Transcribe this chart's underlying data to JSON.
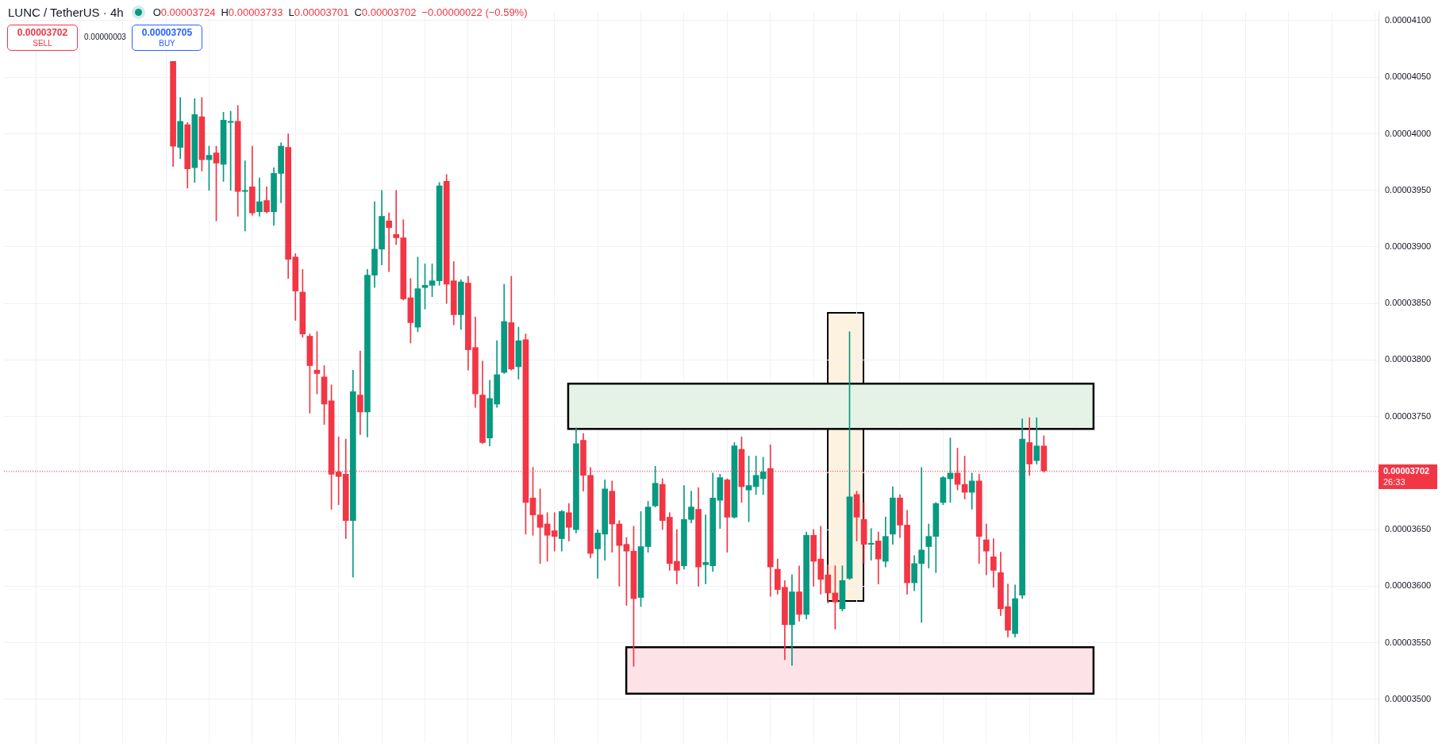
{
  "chart_data": {
    "type": "candlestick",
    "title": "LUNC / TetherUS · 4h",
    "categories": [
      null,
      null,
      null,
      null,
      null,
      null,
      null,
      null,
      null,
      null,
      null,
      null,
      null,
      null,
      null,
      null,
      null,
      null,
      null,
      null,
      null,
      null,
      null,
      null,
      null,
      null,
      null,
      null,
      null,
      null,
      null,
      null,
      null,
      null,
      null,
      null,
      null,
      null,
      null,
      null,
      null,
      null,
      null,
      null,
      null,
      null,
      null,
      null,
      null,
      null,
      null,
      null,
      null,
      null,
      null,
      null,
      null,
      null,
      null,
      null,
      null,
      null,
      null,
      null,
      null,
      null,
      null,
      null,
      null,
      null,
      null,
      null,
      null,
      null,
      null,
      null,
      null,
      null,
      null,
      null,
      null,
      null,
      null,
      null,
      null,
      null,
      null,
      null,
      null,
      null,
      null,
      null,
      null,
      null,
      null,
      null,
      null,
      null,
      null,
      null,
      null,
      null,
      null,
      null,
      null,
      null,
      null,
      null,
      null,
      null,
      null,
      null,
      null,
      null,
      null,
      null,
      null,
      null,
      null,
      null,
      null,
      null,
      null,
      null,
      null,
      null,
      null,
      null,
      null,
      null,
      null,
      null,
      null,
      null,
      null,
      null,
      null,
      null,
      null,
      null,
      null,
      null,
      null,
      null,
      null,
      null,
      null,
      null,
      null,
      null,
      null,
      null,
      null,
      null,
      null,
      null,
      null,
      null,
      null,
      null,
      null,
      null,
      null,
      null,
      null,
      null,
      null,
      null,
      null,
      null,
      null,
      null,
      null,
      null,
      null,
      null,
      null,
      null,
      null,
      null,
      null,
      null,
      null,
      null,
      null,
      null,
      null,
      null,
      null,
      null,
      null
    ],
    "ohlc": [
      null,
      null,
      null,
      null,
      null,
      null,
      null,
      null,
      null,
      null,
      null,
      null,
      null,
      null,
      null,
      null,
      null,
      null,
      null,
      null,
      null,
      null,
      null,
      [
        4.064e-05,
        4.064e-05,
        3.971e-05,
        3.989e-05
      ],
      [
        3.988e-05,
        4.032e-05,
        3.978e-05,
        4.011e-05
      ],
      [
        4.008e-05,
        4.01e-05,
        3.952e-05,
        3.969e-05
      ],
      [
        3.97e-05,
        4.031e-05,
        3.957e-05,
        4.017e-05
      ],
      [
        4.015e-05,
        4.032e-05,
        3.967e-05,
        3.977e-05
      ],
      [
        3.977e-05,
        3.989e-05,
        3.95e-05,
        3.981e-05
      ],
      [
        3.983e-05,
        3.989e-05,
        3.923e-05,
        3.974e-05
      ],
      [
        3.973e-05,
        4.019e-05,
        3.958e-05,
        4.012e-05
      ],
      [
        4.01e-05,
        4.02e-05,
        3.95e-05,
        4.011e-05
      ],
      [
        4.011e-05,
        4.025e-05,
        3.927e-05,
        3.949e-05
      ],
      [
        3.949e-05,
        3.976e-05,
        3.914e-05,
        3.95e-05
      ],
      [
        3.953e-05,
        3.989e-05,
        3.928e-05,
        3.93e-05
      ],
      [
        3.931e-05,
        3.961e-05,
        3.927e-05,
        3.94e-05
      ],
      [
        3.941e-05,
        3.953e-05,
        3.93e-05,
        3.931e-05
      ],
      [
        3.931e-05,
        3.97e-05,
        3.919e-05,
        3.965e-05
      ],
      [
        3.965e-05,
        3.992e-05,
        3.939e-05,
        3.989e-05
      ],
      [
        3.988e-05,
        4e-05,
        3.872e-05,
        3.889e-05
      ],
      [
        3.891e-05,
        3.894e-05,
        3.835e-05,
        3.861e-05
      ],
      [
        3.86e-05,
        3.88e-05,
        3.82e-05,
        3.823e-05
      ],
      [
        3.821e-05,
        3.823e-05,
        3.753e-05,
        3.795e-05
      ],
      [
        3.791e-05,
        3.825e-05,
        3.77e-05,
        3.788e-05
      ],
      [
        3.785e-05,
        3.795e-05,
        3.743e-05,
        3.761e-05
      ],
      [
        3.764e-05,
        3.778e-05,
        3.668e-05,
        3.699e-05
      ],
      [
        3.701e-05,
        3.732e-05,
        3.672e-05,
        3.697e-05
      ],
      [
        3.699e-05,
        3.73e-05,
        3.642e-05,
        3.658e-05
      ],
      [
        3.658e-05,
        3.791e-05,
        3.608e-05,
        3.772e-05
      ],
      [
        3.769e-05,
        3.808e-05,
        3.734e-05,
        3.754e-05
      ],
      [
        3.754e-05,
        3.88e-05,
        3.732e-05,
        3.875e-05
      ],
      [
        3.875e-05,
        3.94e-05,
        3.864e-05,
        3.898e-05
      ],
      [
        3.898e-05,
        3.95e-05,
        3.884e-05,
        3.927e-05
      ],
      [
        3.923e-05,
        3.93e-05,
        3.878e-05,
        3.917e-05
      ],
      [
        3.911e-05,
        3.95e-05,
        3.902e-05,
        3.908e-05
      ],
      [
        3.908e-05,
        3.924e-05,
        3.853e-05,
        3.854e-05
      ],
      [
        3.855e-05,
        3.872e-05,
        3.815e-05,
        3.833e-05
      ],
      [
        3.829e-05,
        3.891e-05,
        3.825e-05,
        3.863e-05
      ],
      [
        3.864e-05,
        3.885e-05,
        3.845e-05,
        3.866e-05
      ],
      [
        3.866e-05,
        3.885e-05,
        3.856e-05,
        3.87e-05
      ],
      [
        3.87e-05,
        3.957e-05,
        3.866e-05,
        3.954e-05
      ],
      [
        3.958e-05,
        3.964e-05,
        3.85e-05,
        3.867e-05
      ],
      [
        3.87e-05,
        3.887e-05,
        3.831e-05,
        3.84e-05
      ],
      [
        3.84e-05,
        3.871e-05,
        3.827e-05,
        3.869e-05
      ],
      [
        3.868e-05,
        3.874e-05,
        3.791e-05,
        3.809e-05
      ],
      [
        3.811e-05,
        3.838e-05,
        3.758e-05,
        3.77e-05
      ],
      [
        3.769e-05,
        3.799e-05,
        3.726e-05,
        3.727e-05
      ],
      [
        3.731e-05,
        3.782e-05,
        3.724e-05,
        3.766e-05
      ],
      [
        3.761e-05,
        3.817e-05,
        3.758e-05,
        3.787e-05
      ],
      [
        3.789e-05,
        3.867e-05,
        3.788e-05,
        3.834e-05
      ],
      [
        3.833e-05,
        3.874e-05,
        3.791e-05,
        3.792e-05
      ],
      [
        3.794e-05,
        3.829e-05,
        3.783e-05,
        3.817e-05
      ],
      [
        3.818e-05,
        3.823e-05,
        3.646e-05,
        3.674e-05
      ],
      [
        3.678e-05,
        3.705e-05,
        3.645e-05,
        3.663e-05
      ],
      [
        3.663e-05,
        3.686e-05,
        3.62e-05,
        3.652e-05
      ],
      [
        3.655e-05,
        3.665e-05,
        3.622e-05,
        3.645e-05
      ],
      [
        3.649e-05,
        3.665e-05,
        3.631e-05,
        3.644e-05
      ],
      [
        3.642e-05,
        3.667e-05,
        3.631e-05,
        3.666e-05
      ],
      [
        3.665e-05,
        3.673e-05,
        3.64e-05,
        3.652e-05
      ],
      [
        3.65e-05,
        3.74e-05,
        3.647e-05,
        3.726e-05
      ],
      [
        3.729e-05,
        3.735e-05,
        3.684e-05,
        3.698e-05
      ],
      [
        3.698e-05,
        3.705e-05,
        3.625e-05,
        3.629e-05
      ],
      [
        3.633e-05,
        3.65e-05,
        3.607e-05,
        3.647e-05
      ],
      [
        3.646e-05,
        3.694e-05,
        3.623e-05,
        3.686e-05
      ],
      [
        3.684e-05,
        3.693e-05,
        3.63e-05,
        3.655e-05
      ],
      [
        3.655e-05,
        3.658e-05,
        3.6e-05,
        3.636e-05
      ],
      [
        3.637e-05,
        3.643e-05,
        3.583e-05,
        3.631e-05
      ],
      [
        3.631e-05,
        3.653e-05,
        3.529e-05,
        3.589e-05
      ],
      [
        3.59e-05,
        3.666e-05,
        3.582e-05,
        3.635e-05
      ],
      [
        3.635e-05,
        3.675e-05,
        3.63e-05,
        3.67e-05
      ],
      [
        3.671e-05,
        3.706e-05,
        3.67e-05,
        3.691e-05
      ],
      [
        3.69e-05,
        3.695e-05,
        3.65e-05,
        3.658e-05
      ],
      [
        3.661e-05,
        3.665e-05,
        3.614e-05,
        3.62e-05
      ],
      [
        3.622e-05,
        3.65e-05,
        3.602e-05,
        3.614e-05
      ],
      [
        3.618e-05,
        3.689e-05,
        3.615e-05,
        3.659e-05
      ],
      [
        3.659e-05,
        3.684e-05,
        3.656e-05,
        3.67e-05
      ],
      [
        3.668e-05,
        3.687e-05,
        3.6e-05,
        3.617e-05
      ],
      [
        3.619e-05,
        3.663e-05,
        3.602e-05,
        3.621e-05
      ],
      [
        3.618e-05,
        3.7e-05,
        3.613e-05,
        3.678e-05
      ],
      [
        3.676e-05,
        3.699e-05,
        3.651e-05,
        3.696e-05
      ],
      [
        3.694e-05,
        3.695e-05,
        3.63e-05,
        3.661e-05
      ],
      [
        3.661e-05,
        3.727e-05,
        3.66e-05,
        3.724e-05
      ],
      [
        3.721e-05,
        3.732e-05,
        3.674e-05,
        3.688e-05
      ],
      [
        3.685e-05,
        3.715e-05,
        3.657e-05,
        3.689e-05
      ],
      [
        3.688e-05,
        3.715e-05,
        3.681e-05,
        3.698e-05
      ],
      [
        3.695e-05,
        3.714e-05,
        3.681e-05,
        3.701e-05
      ],
      [
        3.704e-05,
        3.725e-05,
        3.591e-05,
        3.617e-05
      ],
      [
        3.615e-05,
        3.624e-05,
        3.593e-05,
        3.597e-05
      ],
      [
        3.599e-05,
        3.605e-05,
        3.535e-05,
        3.566e-05
      ],
      [
        3.566e-05,
        3.61e-05,
        3.53e-05,
        3.595e-05
      ],
      [
        3.595e-05,
        3.618e-05,
        3.569e-05,
        3.575e-05
      ],
      [
        3.575e-05,
        3.648e-05,
        3.571e-05,
        3.645e-05
      ],
      [
        3.645e-05,
        3.65e-05,
        3.6e-05,
        3.622e-05
      ],
      [
        3.624e-05,
        3.653e-05,
        3.593e-05,
        3.606e-05
      ],
      [
        3.61e-05,
        3.619e-05,
        3.585e-05,
        3.594e-05
      ],
      [
        3.594e-05,
        3.618e-05,
        3.562e-05,
        3.586e-05
      ],
      [
        3.58e-05,
        3.618e-05,
        3.578e-05,
        3.605e-05
      ],
      [
        3.607e-05,
        3.825e-05,
        3.606e-05,
        3.679e-05
      ],
      [
        3.681e-05,
        3.684e-05,
        3.64e-05,
        3.661e-05
      ],
      [
        3.659e-05,
        3.674e-05,
        3.62e-05,
        3.637e-05
      ],
      [
        3.637e-05,
        3.651e-05,
        3.623e-05,
        3.638e-05
      ],
      [
        3.64e-05,
        3.648e-05,
        3.602e-05,
        3.624e-05
      ],
      [
        3.622e-05,
        3.661e-05,
        3.617e-05,
        3.644e-05
      ],
      [
        3.646e-05,
        3.688e-05,
        3.637e-05,
        3.678e-05
      ],
      [
        3.678e-05,
        3.681e-05,
        3.643e-05,
        3.654e-05
      ],
      [
        3.654e-05,
        3.667e-05,
        3.593e-05,
        3.603e-05
      ],
      [
        3.603e-05,
        3.627e-05,
        3.596e-05,
        3.62e-05
      ],
      [
        3.62e-05,
        3.705e-05,
        3.568e-05,
        3.632e-05
      ],
      [
        3.635e-05,
        3.655e-05,
        3.616e-05,
        3.644e-05
      ],
      [
        3.644e-05,
        3.674e-05,
        3.612e-05,
        3.673e-05
      ],
      [
        3.674e-05,
        3.697e-05,
        3.672e-05,
        3.696e-05
      ],
      [
        3.695e-05,
        3.731e-05,
        3.674e-05,
        3.7e-05
      ],
      [
        3.7e-05,
        3.722e-05,
        3.685e-05,
        3.69e-05
      ],
      [
        3.69e-05,
        3.715e-05,
        3.677e-05,
        3.683e-05
      ],
      [
        3.683e-05,
        3.7e-05,
        3.668e-05,
        3.693e-05
      ],
      [
        3.693e-05,
        3.699e-05,
        3.62e-05,
        3.644e-05
      ],
      [
        3.641e-05,
        3.655e-05,
        3.61e-05,
        3.631e-05
      ],
      [
        3.626e-05,
        3.642e-05,
        3.599e-05,
        3.614e-05
      ],
      [
        3.612e-05,
        3.63e-05,
        3.574e-05,
        3.58e-05
      ],
      [
        3.582e-05,
        3.602e-05,
        3.555e-05,
        3.561e-05
      ],
      [
        3.558e-05,
        3.601e-05,
        3.555e-05,
        3.589e-05
      ],
      [
        3.592e-05,
        3.748e-05,
        3.589e-05,
        3.73e-05
      ],
      [
        3.727e-05,
        3.749e-05,
        3.698e-05,
        3.708e-05
      ],
      [
        3.711e-05,
        3.749e-05,
        3.708e-05,
        3.724e-05
      ],
      [
        3.724e-05,
        3.733e-05,
        3.701e-05,
        3.702e-05
      ],
      null,
      null,
      null,
      null,
      null,
      null,
      null,
      null,
      null,
      null,
      null,
      null,
      null,
      null,
      null,
      null,
      null,
      null,
      null,
      null,
      null,
      null,
      null,
      null,
      null,
      null,
      null,
      null,
      null,
      null,
      null,
      null,
      null,
      null,
      null,
      null,
      null,
      null,
      null,
      null,
      null,
      null,
      null,
      null,
      null,
      null
    ],
    "colors": [
      null,
      null,
      null,
      null,
      null,
      null,
      null,
      null,
      null,
      null,
      null,
      null,
      null,
      null,
      null,
      null,
      null,
      null,
      null,
      null,
      null,
      null,
      null,
      "#f23645",
      "#089981",
      "#f23645",
      "#089981",
      "#f23645",
      "#089981",
      "#f23645",
      "#089981",
      "#089981",
      "#f23645",
      "#089981",
      "#f23645",
      "#089981",
      "#f23645",
      "#089981",
      "#089981",
      "#f23645",
      "#f23645",
      "#f23645",
      "#f23645",
      "#f23645",
      "#f23645",
      "#f23645",
      "#f23645",
      "#f23645",
      "#089981",
      "#f23645",
      "#089981",
      "#089981",
      "#089981",
      "#f23645",
      "#f23645",
      "#f23645",
      "#f23645",
      "#089981",
      "#089981",
      "#089981",
      "#089981",
      "#f23645",
      "#f23645",
      "#089981",
      "#f23645",
      "#f23645",
      "#f23645",
      "#089981",
      "#089981",
      "#089981",
      "#f23645",
      "#089981",
      "#f23645",
      "#f23645",
      "#f23645",
      "#f23645",
      "#f23645",
      "#089981",
      "#f23645",
      "#089981",
      "#f23645",
      "#f23645",
      "#089981",
      "#089981",
      "#f23645",
      "#f23645",
      "#f23645",
      "#f23645",
      "#089981",
      "#089981",
      "#089981",
      "#f23645",
      "#f23645",
      "#f23645",
      "#089981",
      "#089981",
      "#f23645",
      "#089981",
      "#089981",
      "#089981",
      "#f23645",
      "#089981",
      "#f23645",
      "#089981",
      "#089981",
      "#089981",
      "#f23645",
      "#f23645",
      "#f23645",
      "#089981",
      "#f23645",
      "#089981",
      "#f23645",
      "#f23645",
      "#f23645",
      "#f23645",
      "#089981",
      "#089981",
      "#f23645",
      "#f23645",
      "#089981",
      "#f23645",
      "#089981",
      "#089981",
      "#f23645",
      "#f23645",
      "#089981",
      "#089981",
      "#089981",
      "#089981",
      "#089981",
      "#089981",
      "#f23645",
      "#f23645",
      "#089981",
      "#f23645",
      "#f23645",
      "#f23645",
      "#f23645",
      "#f23645",
      "#089981",
      "#089981",
      "#f23645",
      "#089981",
      "#f23645",
      null,
      null,
      null,
      null,
      null,
      null,
      null,
      null,
      null,
      null,
      null,
      null,
      null,
      null,
      null,
      null,
      null,
      null,
      null,
      null,
      null,
      null,
      null,
      null,
      null,
      null,
      null,
      null,
      null,
      null,
      null,
      null,
      null,
      null,
      null,
      null,
      null,
      null,
      null,
      null,
      null,
      null,
      null,
      null,
      null,
      null
    ],
    "ylim": [
      3.461e-05,
      4.108e-05
    ],
    "yticks": [
      {
        "value": 4.1e-05,
        "label": "0.00004100"
      },
      {
        "value": 4.05e-05,
        "label": "0.00004050"
      },
      {
        "value": 4e-05,
        "label": "0.00004000"
      },
      {
        "value": 3.95e-05,
        "label": "0.00003950"
      },
      {
        "value": 3.9e-05,
        "label": "0.00003900"
      },
      {
        "value": 3.85e-05,
        "label": "0.00003850"
      },
      {
        "value": 3.8e-05,
        "label": "0.00003800"
      },
      {
        "value": 3.75e-05,
        "label": "0.00003750"
      },
      {
        "value": 3.7e-05,
        "label": null
      },
      {
        "value": 3.65e-05,
        "label": "0.00003650"
      },
      {
        "value": 3.6e-05,
        "label": "0.00003600"
      },
      {
        "value": 3.55e-05,
        "label": "0.00003550"
      },
      {
        "value": 3.5e-05,
        "label": "0.00003500"
      }
    ],
    "tick_labels": "y",
    "grid": true,
    "bands": [
      {
        "axis": "y",
        "from": 3.739e-05,
        "to": 3.779e-05,
        "color": "#e4f3e6"
      },
      {
        "axis": "y",
        "from": 3.505e-05,
        "to": 3.546e-05,
        "color": "#fde3e7"
      }
    ],
    "ref_lines": [
      {
        "axis": "y",
        "value": 3.702e-05,
        "label": "0.00003702",
        "color": "#f23645",
        "line_style": "dotted"
      }
    ],
    "annotations": [
      "O",
      "0.00003724",
      "H",
      "0.00003733",
      "L",
      "0.00003701",
      "C",
      "0.00003702",
      "−0.00000022 (−0.59%)",
      "0.00003702",
      "SELL",
      "0.00000003",
      "0.00003705",
      "BUY",
      "26:33"
    ]
  }
}
